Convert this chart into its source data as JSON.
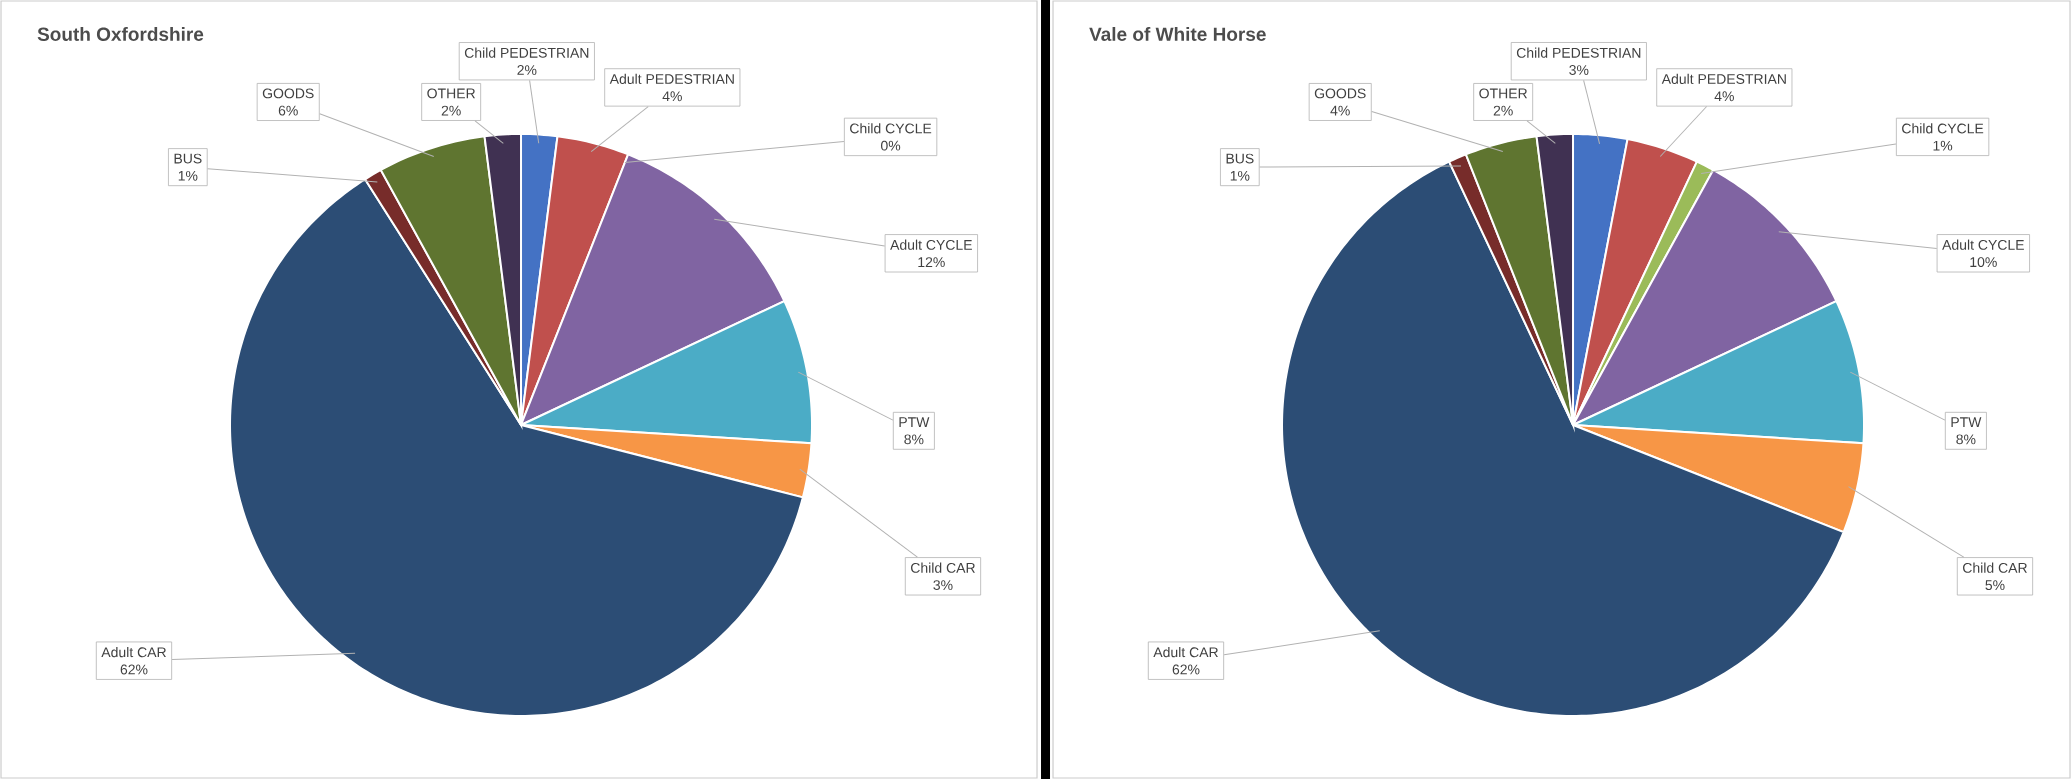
{
  "chart_data": [
    {
      "type": "pie",
      "title": "South Oxfordshire",
      "categories": [
        "Child PEDESTRIAN",
        "Adult PEDESTRIAN",
        "Child CYCLE",
        "Adult CYCLE",
        "PTW",
        "Child CAR",
        "Adult CAR",
        "BUS",
        "GOODS",
        "OTHER"
      ],
      "values": [
        2,
        4,
        0,
        12,
        8,
        3,
        62,
        1,
        6,
        2
      ],
      "value_labels": [
        "2%",
        "4%",
        "0%",
        "12%",
        "8%",
        "3%",
        "62%",
        "1%",
        "6%",
        "2%"
      ],
      "colors": [
        "#4472c4",
        "#c0504d",
        "#9bbb59",
        "#8064a2",
        "#4bacc6",
        "#f79646",
        "#2c4d75",
        "#772c2a",
        "#5f7530",
        "#403152"
      ]
    },
    {
      "type": "pie",
      "title": "Vale of White Horse",
      "categories": [
        "Child PEDESTRIAN",
        "Adult PEDESTRIAN",
        "Child CYCLE",
        "Adult CYCLE",
        "PTW",
        "Child CAR",
        "Adult CAR",
        "BUS",
        "GOODS",
        "OTHER"
      ],
      "values": [
        3,
        4,
        1,
        10,
        8,
        5,
        62,
        1,
        4,
        2
      ],
      "value_labels": [
        "3%",
        "4%",
        "1%",
        "10%",
        "8%",
        "5%",
        "62%",
        "1%",
        "4%",
        "2%"
      ],
      "colors": [
        "#4472c4",
        "#c0504d",
        "#9bbb59",
        "#8064a2",
        "#4bacc6",
        "#f79646",
        "#2c4d75",
        "#772c2a",
        "#5f7530",
        "#403152"
      ]
    }
  ]
}
